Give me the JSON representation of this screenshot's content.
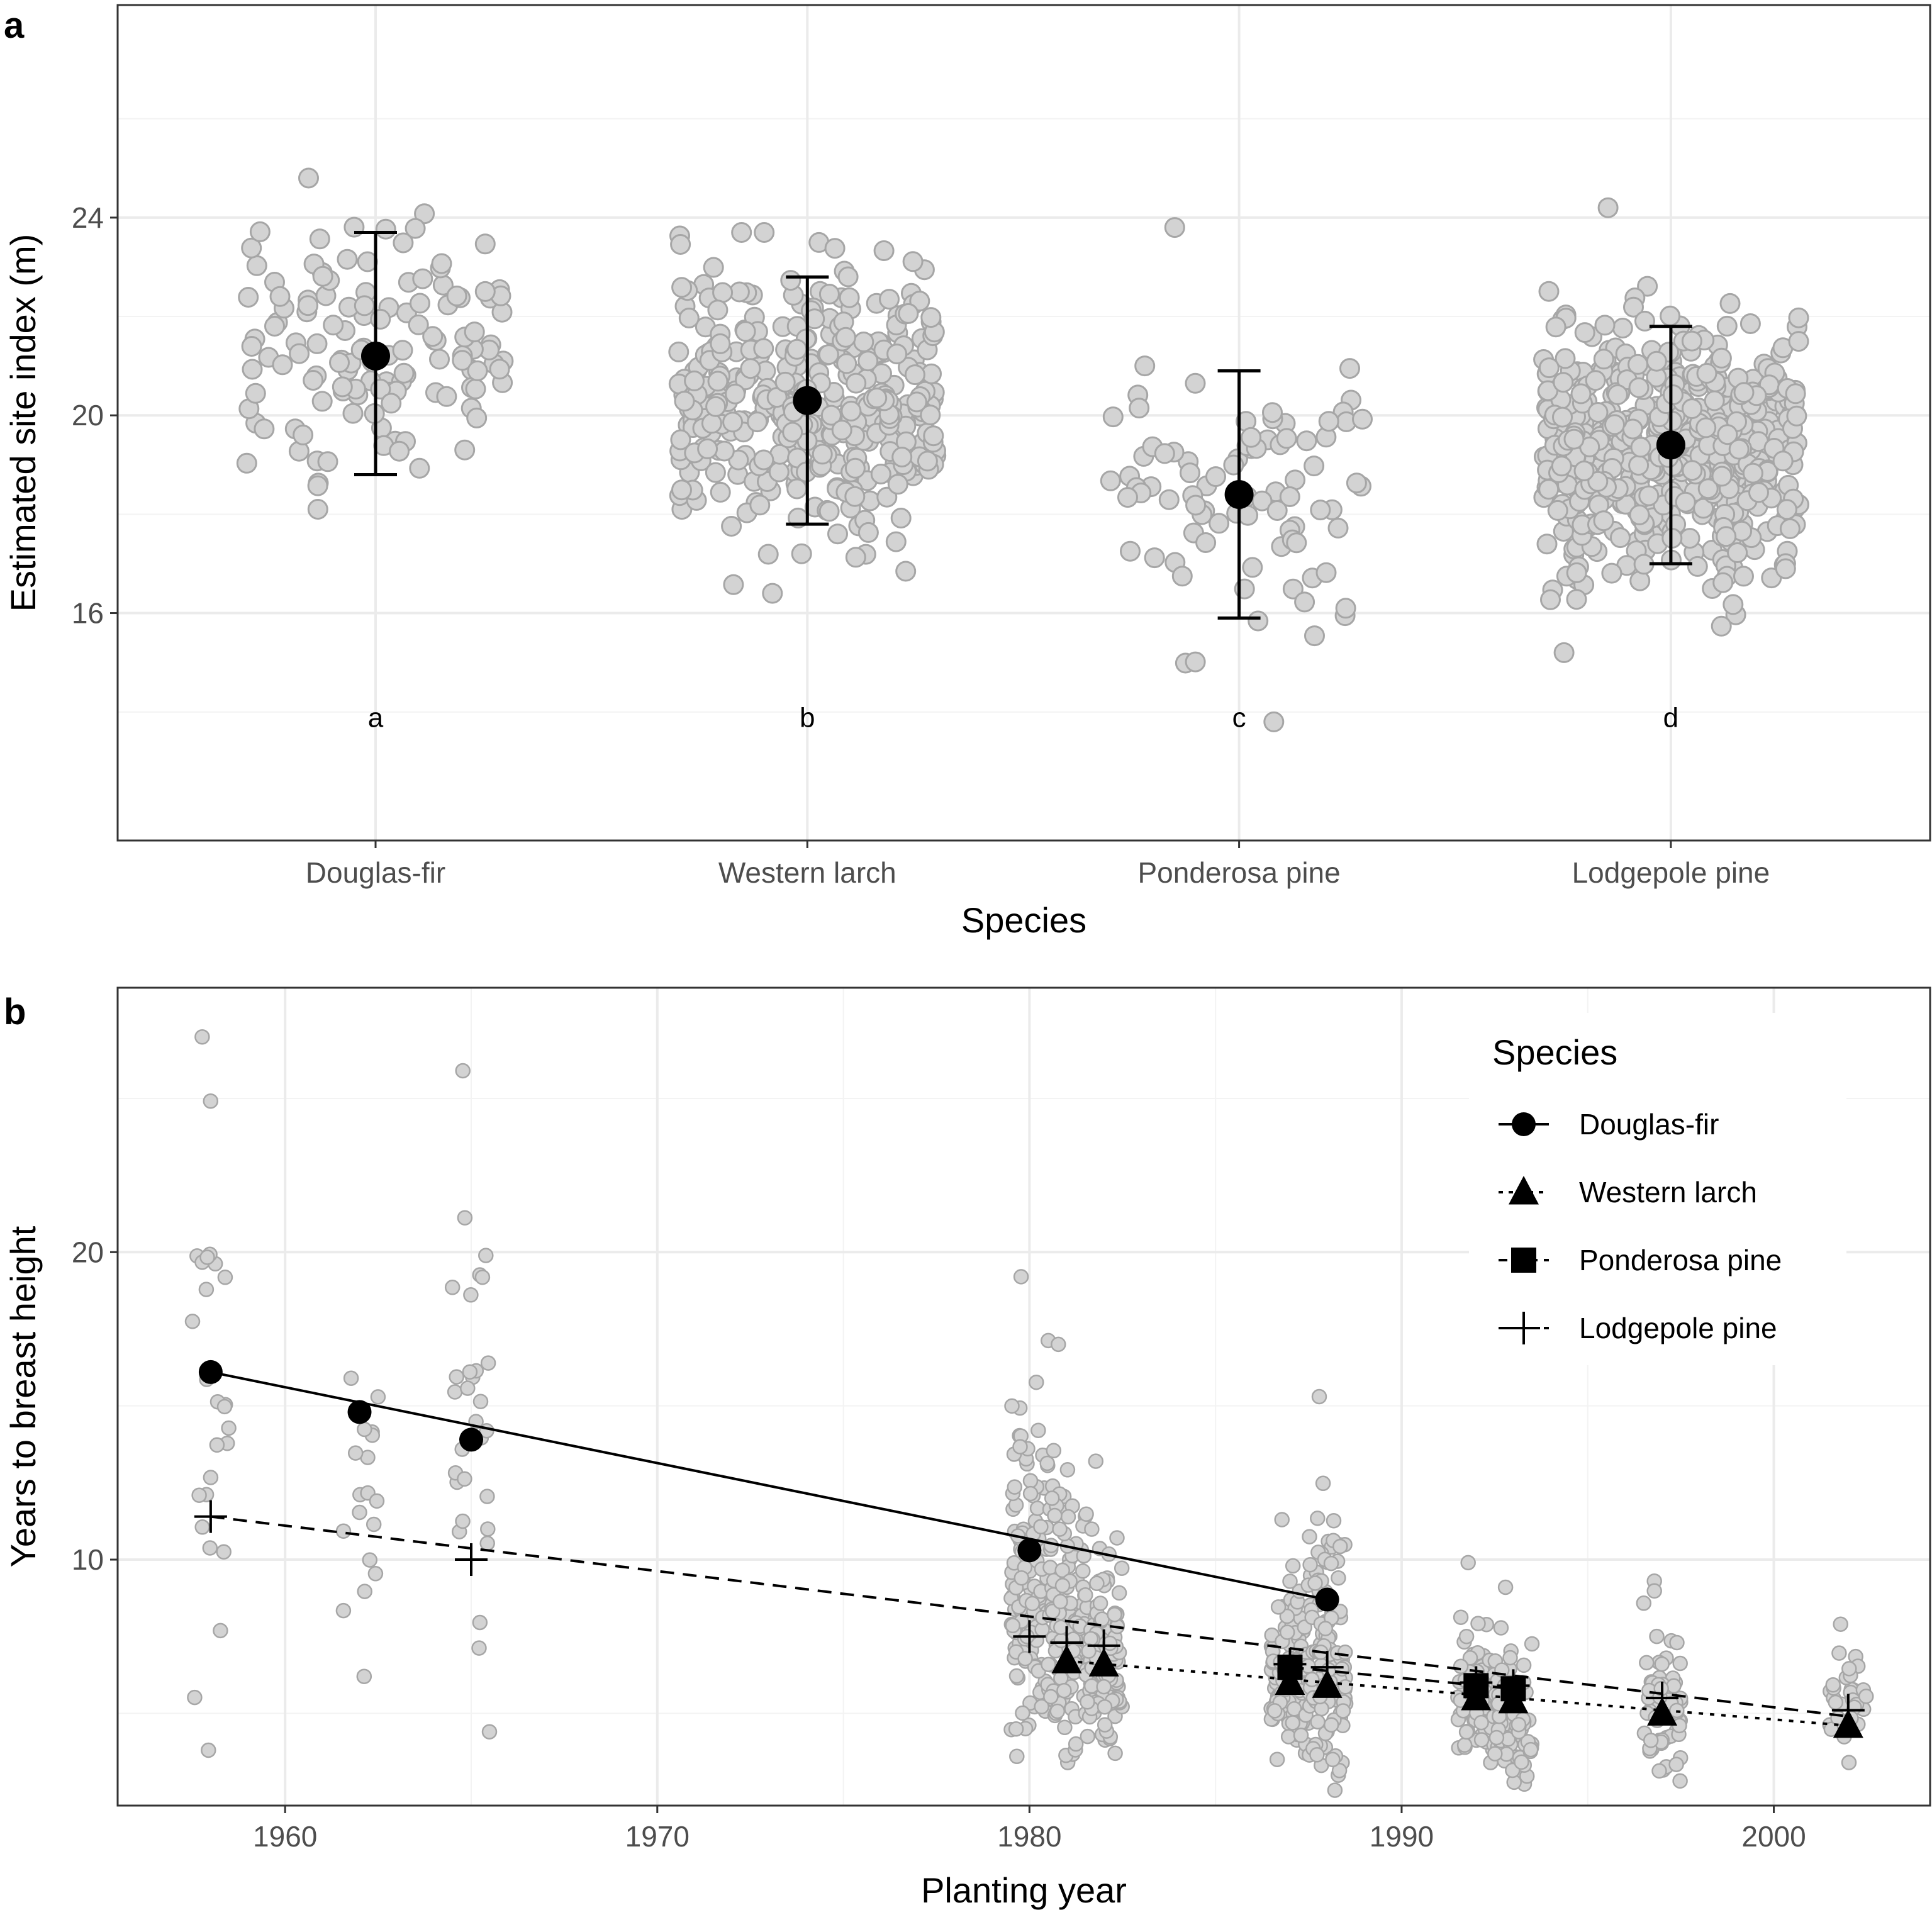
{
  "panels": {
    "a": {
      "letter": "a"
    },
    "b": {
      "letter": "b"
    }
  },
  "colors": {
    "point_fill": "#d3d3d3",
    "point_stroke": "#a6a6a6",
    "grid_major": "#ebebeb",
    "grid_minor": "#f3f3f3",
    "mark": "#000000"
  },
  "chart_data": [
    {
      "id": "a",
      "type": "scatter",
      "title": "",
      "xlabel": "Species",
      "ylabel": "Estimated site index (m)",
      "categories": [
        "Douglas-fir",
        "Western larch",
        "Ponderosa pine",
        "Lodgepole pine"
      ],
      "ylim": [
        11.4,
        28.3
      ],
      "yticks": [
        16,
        20,
        24
      ],
      "means": [
        21.2,
        20.3,
        18.4,
        19.4
      ],
      "error_low": [
        18.8,
        17.8,
        15.9,
        17.0
      ],
      "error_high": [
        23.7,
        22.8,
        20.9,
        21.8
      ],
      "significance_letters": [
        "a",
        "b",
        "c",
        "d"
      ],
      "significance_y": 13.9,
      "raw_points": [
        {
          "species": "Douglas-fir",
          "n": 130,
          "min": 18.1,
          "max": 24.8,
          "seed": 11
        },
        {
          "species": "Western larch",
          "n": 380,
          "min": 16.4,
          "max": 23.7,
          "seed": 23
        },
        {
          "species": "Ponderosa pine",
          "n": 85,
          "min": 13.8,
          "max": 23.8,
          "seed": 37
        },
        {
          "species": "Lodgepole pine",
          "n": 560,
          "min": 15.2,
          "max": 24.2,
          "seed": 53
        }
      ],
      "grid": true
    },
    {
      "id": "b",
      "type": "scatter",
      "title": "",
      "xlabel": "Planting year",
      "ylabel": "Years to breast height",
      "xlim": [
        1955.5,
        2004.2
      ],
      "ylim": [
        2.0,
        28.6
      ],
      "xticks": [
        1960,
        1970,
        1980,
        1990,
        2000
      ],
      "yticks": [
        10,
        20
      ],
      "legend": {
        "title": "Species",
        "position": "top-right",
        "entries": [
          {
            "label": "Douglas-fir",
            "shape": "circle",
            "line": "solid"
          },
          {
            "label": "Western larch",
            "shape": "triangle",
            "line": "dotted"
          },
          {
            "label": "Ponderosa pine",
            "shape": "square",
            "line": "dashed"
          },
          {
            "label": "Lodgepole pine",
            "shape": "plus",
            "line": "dashed"
          }
        ]
      },
      "series": [
        {
          "name": "Douglas-fir",
          "shape": "circle",
          "line": "solid",
          "x": [
            1958,
            1962,
            1965,
            1980,
            1988
          ],
          "y": [
            16.1,
            14.8,
            13.9,
            10.3,
            8.7
          ],
          "fit": {
            "x": [
              1958,
              1988
            ],
            "y": [
              16.1,
              8.7
            ]
          }
        },
        {
          "name": "Western larch",
          "shape": "triangle",
          "line": "dotted",
          "x": [
            1981,
            1982,
            1987,
            1988,
            1992,
            1993,
            1997,
            2002
          ],
          "y": [
            6.7,
            6.6,
            6.0,
            5.9,
            5.5,
            5.4,
            5.0,
            4.6
          ],
          "fit": {
            "x": [
              1981,
              2002
            ],
            "y": [
              6.7,
              4.6
            ]
          }
        },
        {
          "name": "Ponderosa pine",
          "shape": "square",
          "line": "dashed",
          "x": [
            1987,
            1992,
            1993
          ],
          "y": [
            6.5,
            5.9,
            5.8
          ],
          "fit": {
            "x": [
              1987,
              1993
            ],
            "y": [
              6.5,
              5.8
            ]
          }
        },
        {
          "name": "Lodgepole pine",
          "shape": "plus",
          "line": "dashed",
          "x": [
            1958,
            1965,
            1980,
            1981,
            1982,
            1987,
            1988,
            1992,
            1993,
            1997,
            2002
          ],
          "y": [
            11.4,
            10.0,
            7.5,
            7.3,
            7.2,
            6.6,
            6.5,
            6.0,
            5.9,
            5.5,
            5.1
          ],
          "fit": {
            "x": [
              1958,
              2002
            ],
            "y": [
              11.4,
              4.9
            ]
          }
        }
      ],
      "raw_points": [
        {
          "year": 1958,
          "n": 26,
          "min": 3.8,
          "max": 27.0,
          "seed": 101
        },
        {
          "year": 1962,
          "n": 18,
          "min": 6.2,
          "max": 15.9,
          "seed": 103
        },
        {
          "year": 1965,
          "n": 30,
          "min": 4.4,
          "max": 25.9,
          "seed": 107
        },
        {
          "year": 1980,
          "n": 120,
          "min": 3.6,
          "max": 19.2,
          "seed": 109
        },
        {
          "year": 1981,
          "n": 120,
          "min": 3.4,
          "max": 17.0,
          "seed": 113
        },
        {
          "year": 1982,
          "n": 110,
          "min": 3.7,
          "max": 13.2,
          "seed": 127
        },
        {
          "year": 1987,
          "n": 120,
          "min": 3.5,
          "max": 11.3,
          "seed": 131
        },
        {
          "year": 1988,
          "n": 120,
          "min": 2.5,
          "max": 15.3,
          "seed": 137
        },
        {
          "year": 1992,
          "n": 70,
          "min": 3.4,
          "max": 9.9,
          "seed": 139
        },
        {
          "year": 1993,
          "n": 75,
          "min": 2.7,
          "max": 9.1,
          "seed": 149
        },
        {
          "year": 1997,
          "n": 75,
          "min": 2.8,
          "max": 9.3,
          "seed": 151
        },
        {
          "year": 2002,
          "n": 30,
          "min": 3.4,
          "max": 7.9,
          "seed": 157
        }
      ],
      "grid": true
    }
  ]
}
